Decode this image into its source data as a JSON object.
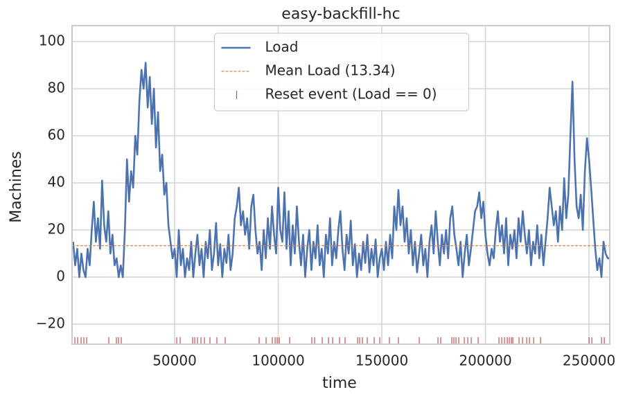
{
  "chart_data": {
    "type": "line",
    "title": "easy-backfill-hc",
    "x_label": "time",
    "y_label": "Machines",
    "xlim": [
      500,
      260000
    ],
    "ylim": [
      -28.5,
      106.8
    ],
    "xticks": [
      50000,
      100000,
      150000,
      200000,
      250000
    ],
    "yticks": [
      {
        "value": -20,
        "label": "−20"
      },
      0,
      20,
      40,
      60,
      80,
      100
    ],
    "grid": true,
    "legend": "upper center",
    "series": [
      {
        "name": "Load",
        "color": "#4c72b0",
        "kind": "line",
        "x": [
          1000,
          2000,
          3000,
          4000,
          5000,
          6000,
          7000,
          8000,
          9000,
          10000,
          11000,
          12000,
          13000,
          14000,
          15000,
          16000,
          17000,
          18000,
          19000,
          20000,
          21000,
          22000,
          23000,
          24000,
          25000,
          26000,
          27000,
          28000,
          29000,
          30000,
          31000,
          32000,
          33000,
          34000,
          35000,
          36000,
          37000,
          38000,
          39000,
          40000,
          41000,
          42000,
          43000,
          44000,
          45000,
          46000,
          47000,
          48000,
          49000,
          50000,
          51000,
          52000,
          53000,
          54000,
          55000,
          56000,
          57000,
          58000,
          59000,
          60000,
          61000,
          62000,
          63000,
          64000,
          65000,
          66000,
          67000,
          68000,
          69000,
          70000,
          71000,
          72000,
          73000,
          74000,
          75000,
          76000,
          77000,
          78000,
          79000,
          80000,
          81000,
          82000,
          83000,
          84000,
          85000,
          86000,
          87000,
          88000,
          89000,
          90000,
          91000,
          92000,
          93000,
          94000,
          95000,
          96000,
          97000,
          98000,
          99000,
          100000,
          101000,
          102000,
          103000,
          104000,
          105000,
          106000,
          107000,
          108000,
          109000,
          110000,
          111000,
          112000,
          113000,
          114000,
          115000,
          116000,
          117000,
          118000,
          119000,
          120000,
          121000,
          122000,
          123000,
          124000,
          125000,
          126000,
          127000,
          128000,
          129000,
          130000,
          131000,
          132000,
          133000,
          134000,
          135000,
          136000,
          137000,
          138000,
          139000,
          140000,
          141000,
          142000,
          143000,
          144000,
          145000,
          146000,
          147000,
          148000,
          149000,
          150000,
          151000,
          152000,
          153000,
          154000,
          155000,
          156000,
          157000,
          158000,
          159000,
          160000,
          161000,
          162000,
          163000,
          164000,
          165000,
          166000,
          167000,
          168000,
          169000,
          170000,
          171000,
          172000,
          173000,
          174000,
          175000,
          176000,
          177000,
          178000,
          179000,
          180000,
          181000,
          182000,
          183000,
          184000,
          185000,
          186000,
          187000,
          188000,
          189000,
          190000,
          191000,
          192000,
          193000,
          194000,
          195000,
          196000,
          197000,
          198000,
          199000,
          200000,
          201000,
          202000,
          203000,
          204000,
          205000,
          206000,
          207000,
          208000,
          209000,
          210000,
          211000,
          212000,
          213000,
          214000,
          215000,
          216000,
          217000,
          218000,
          219000,
          220000,
          221000,
          222000,
          223000,
          224000,
          225000,
          226000,
          227000,
          228000,
          229000,
          230000,
          231000,
          232000,
          233000,
          234000,
          235000,
          236000,
          237000,
          238000,
          239000,
          240000,
          241000,
          242000,
          243000,
          244000,
          245000,
          246000,
          247000,
          248000,
          249000,
          250000,
          251000,
          252000,
          253000,
          254000,
          255000,
          256000,
          257000,
          258000,
          259000,
          260000
        ],
        "values": [
          15,
          5,
          12,
          0,
          10,
          3,
          0,
          12,
          5,
          20,
          32,
          15,
          25,
          12,
          41,
          22,
          15,
          28,
          10,
          18,
          5,
          8,
          0,
          5,
          0,
          20,
          50,
          32,
          45,
          38,
          60,
          52,
          75,
          88,
          80,
          91,
          72,
          85,
          65,
          80,
          55,
          70,
          45,
          52,
          35,
          40,
          22,
          15,
          8,
          12,
          0,
          20,
          5,
          12,
          0,
          8,
          3,
          15,
          0,
          10,
          18,
          5,
          12,
          0,
          15,
          8,
          20,
          3,
          10,
          23,
          5,
          14,
          0,
          12,
          6,
          18,
          3,
          10,
          25,
          30,
          38,
          22,
          28,
          18,
          25,
          12,
          30,
          35,
          20,
          10,
          15,
          3,
          20,
          8,
          25,
          12,
          30,
          18,
          10,
          38,
          20,
          15,
          36,
          12,
          28,
          5,
          22,
          10,
          30,
          15,
          5,
          18,
          0,
          12,
          20,
          3,
          15,
          8,
          22,
          5,
          12,
          0,
          18,
          10,
          25,
          5,
          15,
          8,
          20,
          28,
          12,
          3,
          18,
          10,
          24,
          5,
          14,
          0,
          10,
          3,
          15,
          6,
          18,
          2,
          12,
          5,
          16,
          0,
          8,
          12,
          3,
          15,
          5,
          18,
          8,
          30,
          20,
          37,
          22,
          30,
          15,
          25,
          10,
          20,
          5,
          15,
          2,
          10,
          18,
          5,
          12,
          0,
          15,
          22,
          10,
          28,
          15,
          5,
          18,
          10,
          20,
          8,
          25,
          30,
          18,
          12,
          5,
          15,
          0,
          10,
          18,
          5,
          12,
          20,
          28,
          30,
          36,
          25,
          32,
          18,
          10,
          5,
          12,
          8,
          20,
          28,
          15,
          22,
          10,
          25,
          5,
          18,
          12,
          20,
          8,
          25,
          15,
          28,
          18,
          10,
          20,
          5,
          15,
          10,
          22,
          8,
          18,
          5,
          15,
          25,
          38,
          30,
          22,
          28,
          15,
          30,
          20,
          42,
          25,
          35,
          60,
          83,
          50,
          30,
          25,
          35,
          20,
          45,
          59,
          50,
          38,
          25,
          12,
          3,
          8,
          0,
          15,
          10,
          8,
          8
        ]
      },
      {
        "name": "Mean Load (13.34)",
        "color": "#dd8452",
        "kind": "hline",
        "value": 13.34
      },
      {
        "name": "Reset event (Load == 0)",
        "color": "#c44e52",
        "kind": "event",
        "x": [
          1840,
          3180,
          4850,
          6190,
          7530,
          18230,
          21900,
          22910,
          24250,
          51000,
          52670,
          58690,
          59700,
          61030,
          62700,
          64380,
          67050,
          70400,
          74410,
          90800,
          94140,
          97150,
          98490,
          99490,
          100500,
          105510,
          116210,
          117550,
          121230,
          124240,
          126250,
          129590,
          132270,
          138290,
          139290,
          140630,
          142970,
          146310,
          148990,
          153670,
          158020,
          168050,
          177080,
          178420,
          183770,
          184780,
          185780,
          187120,
          189800,
          191470,
          193140,
          196480,
          206520,
          207860,
          209190,
          210530,
          211530,
          212540,
          213210,
          216220,
          217890,
          219900,
          221240,
          223250,
          226590,
          250000,
          251330,
          256020,
          257360
        ],
        "values": [
          -27,
          -27,
          -27,
          -27,
          -27,
          -27,
          -27,
          -27,
          -27,
          -27,
          -27,
          -27,
          -27,
          -27,
          -27,
          -27,
          -27,
          -27,
          -27,
          -27,
          -27,
          -27,
          -27,
          -27,
          -27,
          -27,
          -27,
          -27,
          -27,
          -27,
          -27,
          -27,
          -27,
          -27,
          -27,
          -27,
          -27,
          -27,
          -27,
          -27,
          -27,
          -27,
          -27,
          -27,
          -27,
          -27,
          -27,
          -27,
          -27,
          -27,
          -27,
          -27,
          -27,
          -27,
          -27,
          -27,
          -27,
          -27,
          -27,
          -27,
          -27,
          -27,
          -27,
          -27,
          -27,
          -27,
          -27,
          -27,
          -27
        ]
      }
    ]
  }
}
